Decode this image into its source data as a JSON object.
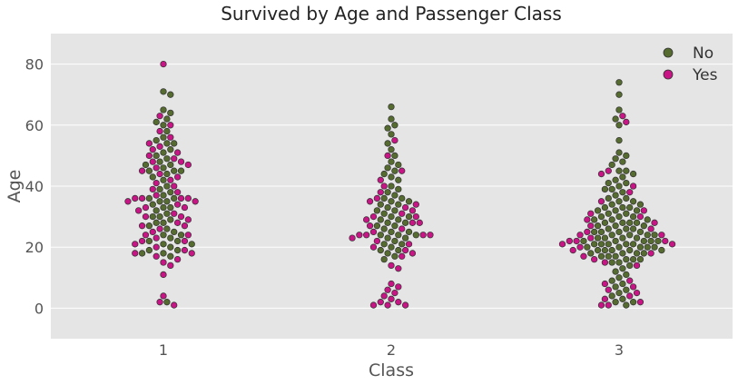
{
  "chart_data": {
    "type": "scatter",
    "subtype": "swarm",
    "title": "Survived by Age and Passenger Class",
    "xlabel": "Class",
    "ylabel": "Age",
    "categories": [
      "1",
      "2",
      "3"
    ],
    "ylim": [
      -10,
      90
    ],
    "yticks": [
      "0",
      "20",
      "40",
      "60",
      "80"
    ],
    "grid": true,
    "legend_position": "top-right",
    "colors": {
      "No": "#556b2f",
      "Yes": "#c71585",
      "background": "#e5e5e5",
      "grid": "#ffffff",
      "edge": "#333333"
    },
    "series": [
      {
        "name": "No",
        "values": {
          "1": [
            71,
            70,
            65,
            64,
            62,
            61,
            60,
            58,
            56,
            55,
            54,
            54,
            52,
            51,
            50,
            49,
            48,
            47,
            47,
            46,
            45,
            45,
            45,
            44,
            43,
            42,
            40,
            39,
            38,
            37,
            36,
            36,
            35,
            35,
            34,
            33,
            33,
            32,
            31,
            30,
            30,
            29,
            28,
            28,
            27,
            26,
            25,
            24,
            24,
            23,
            22,
            22,
            21,
            21,
            20,
            19,
            19,
            18,
            18,
            17,
            2
          ],
          "2": [
            66,
            62,
            60,
            59,
            57,
            54,
            52,
            50,
            48,
            47,
            46,
            45,
            44,
            43,
            42,
            40,
            39,
            38,
            37,
            36,
            36,
            35,
            35,
            34,
            34,
            33,
            32,
            32,
            31,
            30,
            30,
            29,
            29,
            28,
            28,
            27,
            27,
            26,
            25,
            25,
            24,
            24,
            24,
            23,
            23,
            22,
            21,
            21,
            20,
            19,
            19,
            18,
            17,
            16
          ],
          "3": [
            74,
            70,
            65,
            62,
            60,
            55,
            51,
            50,
            49,
            48,
            47,
            45,
            45,
            44,
            43,
            42,
            41,
            41,
            40,
            39,
            39,
            38,
            37,
            36,
            36,
            35,
            35,
            34,
            34,
            33,
            33,
            33,
            32,
            32,
            32,
            31,
            31,
            30,
            30,
            30,
            29,
            29,
            29,
            28,
            28,
            28,
            28,
            27,
            27,
            27,
            26,
            26,
            26,
            25,
            25,
            25,
            25,
            24,
            24,
            24,
            24,
            23,
            23,
            23,
            23,
            22,
            22,
            22,
            22,
            22,
            21,
            21,
            21,
            21,
            21,
            20,
            20,
            20,
            20,
            20,
            19,
            19,
            19,
            19,
            19,
            18,
            18,
            18,
            18,
            17,
            17,
            17,
            16,
            16,
            16,
            15,
            15,
            14,
            13,
            12,
            11,
            10,
            9,
            8,
            7,
            6,
            5,
            4,
            3,
            2,
            2,
            1
          ]
        }
      },
      {
        "name": "Yes",
        "values": {
          "1": [
            80,
            63,
            60,
            58,
            56,
            54,
            53,
            52,
            51,
            50,
            49,
            48,
            48,
            47,
            46,
            45,
            44,
            43,
            42,
            41,
            40,
            39,
            38,
            37,
            36,
            36,
            36,
            36,
            35,
            35,
            34,
            33,
            33,
            32,
            31,
            30,
            30,
            29,
            28,
            27,
            27,
            26,
            25,
            24,
            24,
            23,
            22,
            22,
            21,
            20,
            19,
            18,
            18,
            17,
            16,
            15,
            14,
            11,
            4,
            2,
            1
          ],
          "2": [
            55,
            50,
            45,
            42,
            40,
            38,
            36,
            35,
            34,
            33,
            32,
            31,
            30,
            30,
            29,
            28,
            28,
            27,
            26,
            25,
            24,
            24,
            24,
            24,
            23,
            22,
            21,
            20,
            19,
            18,
            17,
            14,
            13,
            8,
            7,
            6,
            5,
            4,
            3,
            2,
            2,
            1,
            1,
            1
          ],
          "3": [
            63,
            61,
            45,
            44,
            40,
            38,
            35,
            32,
            31,
            30,
            29,
            28,
            27,
            26,
            25,
            24,
            24,
            23,
            22,
            22,
            22,
            21,
            21,
            20,
            19,
            18,
            17,
            16,
            15,
            14,
            9,
            8,
            7,
            6,
            5,
            4,
            3,
            2,
            1,
            1
          ]
        }
      }
    ]
  }
}
